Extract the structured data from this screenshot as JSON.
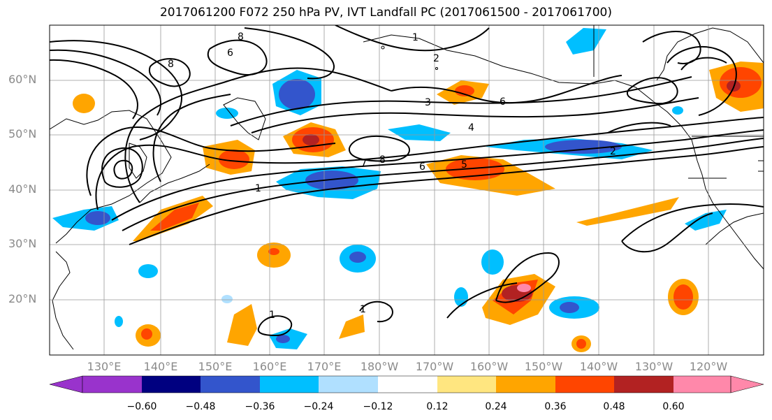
{
  "title": "2017061200 F072 250 hPa PV, IVT Landfall PC (2017061500 - 2017061700)",
  "lat_labels": [
    "60°N",
    "50°N",
    "40°N",
    "30°N",
    "20°N"
  ],
  "lon_labels": [
    "130°E",
    "140°E",
    "150°E",
    "160°E",
    "170°E",
    "180°W",
    "170°W",
    "160°W",
    "150°W",
    "140°W",
    "130°W",
    "120°W"
  ],
  "colorbar": {
    "ticks": [
      "−0.60",
      "−0.48",
      "−0.36",
      "−0.24",
      "−0.12",
      "0.12",
      "0.24",
      "0.36",
      "0.48",
      "0.60"
    ],
    "colors": [
      "#9933cc",
      "#000080",
      "#3355cc",
      "#00bfff",
      "#b0e0ff",
      "#ffffff",
      "#ffe680",
      "#ffa500",
      "#ff4500",
      "#b22222",
      "#ff88aa"
    ]
  },
  "contour_labels": [
    "1",
    "2",
    "3",
    "4",
    "5",
    "6",
    "7",
    "8"
  ]
}
